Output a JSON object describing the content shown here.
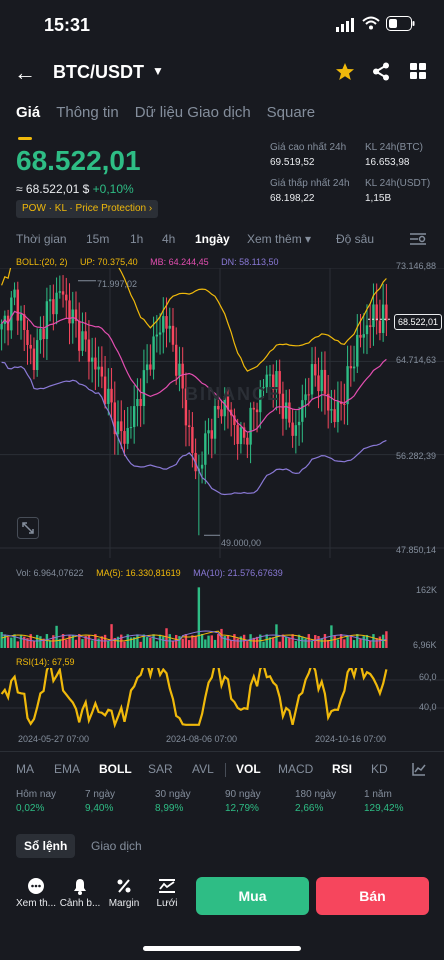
{
  "status_bar": {
    "time": "15:31"
  },
  "header": {
    "pair": "BTC/USDT"
  },
  "tabs": [
    {
      "label": "Giá"
    },
    {
      "label": "Thông tin"
    },
    {
      "label": "Dữ liệu Giao dịch"
    },
    {
      "label": "Square"
    }
  ],
  "price": {
    "last": "68.522,01",
    "approx": "≈ 68.522,01 $",
    "change": "+0,10%",
    "tags": "POW · KL · Price Protection ›"
  },
  "stats": {
    "high_label": "Giá cao nhất 24h",
    "high": "69.519,52",
    "low_label": "Giá thấp nhất 24h",
    "low": "68.198,22",
    "vol_btc_label": "KL 24h(BTC)",
    "vol_btc": "16.653,98",
    "vol_usdt_label": "KL 24h(USDT)",
    "vol_usdt": "1,15B"
  },
  "timebar": {
    "time": "Thời gian",
    "m15": "15m",
    "h1": "1h",
    "h4": "4h",
    "d1": "1ngày",
    "more": "Xem thêm ▾",
    "depth": "Độ sâu"
  },
  "boll": {
    "label": "BOLL:(20, 2)",
    "up": "UP: 70.375,40",
    "mb": "MB: 64.244,45",
    "dn": "DN: 58.113,50"
  },
  "chart_labels": {
    "y1": "73.146,88",
    "y2": "64.714,63",
    "y3": "56.282,39",
    "y4": "47.850,14",
    "current": "68.522,01",
    "high_mark": "71.997,02",
    "low_mark": "49.000,00",
    "vol_max": "162K",
    "vol_min": "6,96K",
    "rsi_60": "60,0",
    "rsi_40": "40,0",
    "x1": "2024-05-27 07:00",
    "x2": "2024-08-06 07:00",
    "x3": "2024-10-16 07:00",
    "watermark": "BINANCE"
  },
  "volume": {
    "vol": "Vol: 6.964,07622",
    "ma5": "MA(5): 16.330,81619",
    "ma10": "MA(10): 21.576,67639"
  },
  "rsi": {
    "label": "RSI(14): 67,59"
  },
  "indicators": {
    "ma": "MA",
    "ema": "EMA",
    "boll": "BOLL",
    "sar": "SAR",
    "avl": "AVL",
    "vol": "VOL",
    "macd": "MACD",
    "rsi": "RSI",
    "kd": "KD"
  },
  "performance": [
    {
      "label": "Hôm nay",
      "value": "0,02%"
    },
    {
      "label": "7 ngày",
      "value": "9,40%"
    },
    {
      "label": "30 ngày",
      "value": "8,99%"
    },
    {
      "label": "90 ngày",
      "value": "12,79%"
    },
    {
      "label": "180 ngày",
      "value": "2,66%"
    },
    {
      "label": "1 năm",
      "value": "129,42%"
    }
  ],
  "order_tabs": {
    "book": "Sổ lệnh",
    "trades": "Giao dịch"
  },
  "actions": {
    "more": "Xem th...",
    "alert": "Cảnh b...",
    "margin": "Margin",
    "grid": "Lưới"
  },
  "buttons": {
    "buy": "Mua",
    "sell": "Bán"
  },
  "colors": {
    "bg": "#181a20",
    "green": "#2ebd85",
    "red": "#f6465d",
    "yellow": "#f0b90b",
    "pink": "#e24eb0",
    "purple": "#8a79d6",
    "buy": "#2ebd85",
    "sell": "#f6465d"
  },
  "chart_data": {
    "type": "candlestick",
    "title": "BTC/USDT 1ngày",
    "y_range": [
      47850.14,
      73146.88
    ],
    "x_ticks": [
      "2024-05-27 07:00",
      "2024-08-06 07:00",
      "2024-10-16 07:00"
    ],
    "close_series": [
      67500,
      69000,
      70500,
      68500,
      66200,
      64800,
      67200,
      69500,
      70000,
      71200,
      69800,
      68400,
      67000,
      66100,
      64500,
      63800,
      61800,
      60300,
      58200,
      57800,
      59500,
      61400,
      63200,
      65800,
      67200,
      68900,
      66700,
      64200,
      61200,
      57100,
      54200,
      56800,
      58900,
      59800,
      61200,
      60100,
      58300,
      57400,
      59100,
      60700,
      62400,
      63600,
      62900,
      61100,
      59200,
      58300,
      60400,
      62700,
      63500,
      63100,
      60800,
      59600,
      60900,
      62800,
      65300,
      66900,
      67800,
      68900,
      68400,
      68522
    ],
    "boll": {
      "up": 70375.4,
      "mb": 64244.45,
      "dn": 58113.5
    },
    "annotations": {
      "high": 71997.02,
      "low": 49000.0,
      "current": 68522.01
    },
    "volume": {
      "current": 6964.07622,
      "ma5": 16330.81619,
      "ma10": 21576.67639,
      "max_label": "162K",
      "min_label": "6,96K"
    },
    "rsi": {
      "period": 14,
      "current": 67.59,
      "levels": [
        60,
        40
      ]
    }
  }
}
